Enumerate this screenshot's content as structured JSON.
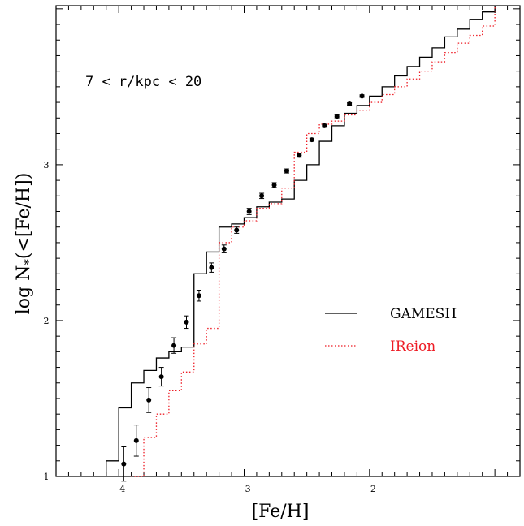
{
  "chart_data": {
    "type": "line",
    "xlabel": "[Fe/H]",
    "ylabel": "log N*(<[Fe/H])",
    "xlim": [
      -4.5,
      -0.8
    ],
    "ylim": [
      1.0,
      4.02
    ],
    "x_ticks": [
      -4,
      -3,
      -2
    ],
    "x_tick_labels": [
      "−4",
      "−3",
      "−2"
    ],
    "y_ticks": [
      1,
      2,
      3
    ],
    "y_tick_labels": [
      "1",
      "2",
      "3"
    ],
    "annotation": "7 < r/kpc < 20",
    "legend_position": "center-right",
    "series": [
      {
        "name": "GAMESH",
        "style": "solid",
        "color": "#000000",
        "x": [
          -4.1,
          -4.0,
          -3.9,
          -3.8,
          -3.7,
          -3.6,
          -3.5,
          -3.4,
          -3.3,
          -3.2,
          -3.1,
          -3.0,
          -2.9,
          -2.8,
          -2.7,
          -2.6,
          -2.5,
          -2.4,
          -2.3,
          -2.2,
          -2.1,
          -2.0,
          -1.9,
          -1.8,
          -1.7,
          -1.6,
          -1.5,
          -1.4,
          -1.3,
          -1.2,
          -1.1,
          -1.0
        ],
        "y": [
          1.1,
          1.44,
          1.6,
          1.68,
          1.76,
          1.8,
          1.83,
          2.3,
          2.44,
          2.6,
          2.62,
          2.66,
          2.73,
          2.76,
          2.78,
          2.9,
          3.0,
          3.15,
          3.25,
          3.33,
          3.38,
          3.44,
          3.5,
          3.57,
          3.63,
          3.69,
          3.75,
          3.82,
          3.87,
          3.93,
          3.98,
          4.02
        ]
      },
      {
        "name": "IReion",
        "style": "dotted",
        "color": "#ee1c25",
        "x": [
          -3.9,
          -3.8,
          -3.7,
          -3.6,
          -3.5,
          -3.4,
          -3.3,
          -3.2,
          -3.1,
          -3.0,
          -2.9,
          -2.8,
          -2.7,
          -2.6,
          -2.5,
          -2.4,
          -2.3,
          -2.2,
          -2.1,
          -2.0,
          -1.9,
          -1.8,
          -1.7,
          -1.6,
          -1.5,
          -1.4,
          -1.3,
          -1.2,
          -1.1,
          -1.0
        ],
        "y": [
          1.0,
          1.25,
          1.4,
          1.55,
          1.67,
          1.85,
          1.95,
          2.5,
          2.6,
          2.64,
          2.72,
          2.75,
          2.85,
          3.08,
          3.2,
          3.26,
          3.28,
          3.32,
          3.35,
          3.4,
          3.45,
          3.5,
          3.55,
          3.6,
          3.66,
          3.72,
          3.78,
          3.83,
          3.89,
          3.94
        ]
      },
      {
        "name": "data",
        "style": "points",
        "color": "#000000",
        "x": [
          -3.96,
          -3.86,
          -3.76,
          -3.66,
          -3.56,
          -3.46,
          -3.36,
          -3.26,
          -3.16,
          -3.06,
          -2.96,
          -2.86,
          -2.76,
          -2.66,
          -2.56,
          -2.46,
          -2.36,
          -2.26,
          -2.16,
          -2.06
        ],
        "y": [
          1.08,
          1.23,
          1.49,
          1.64,
          1.84,
          1.99,
          2.16,
          2.34,
          2.46,
          2.58,
          2.7,
          2.8,
          2.87,
          2.96,
          3.06,
          3.16,
          3.25,
          3.31,
          3.39,
          3.44
        ],
        "err": [
          0.11,
          0.1,
          0.08,
          0.06,
          0.05,
          0.04,
          0.035,
          0.03,
          0.025,
          0.02,
          0.02,
          0.017,
          0.015,
          0.013,
          0.012,
          0.01,
          0.01,
          0.009,
          0.008,
          0.008
        ]
      }
    ]
  }
}
